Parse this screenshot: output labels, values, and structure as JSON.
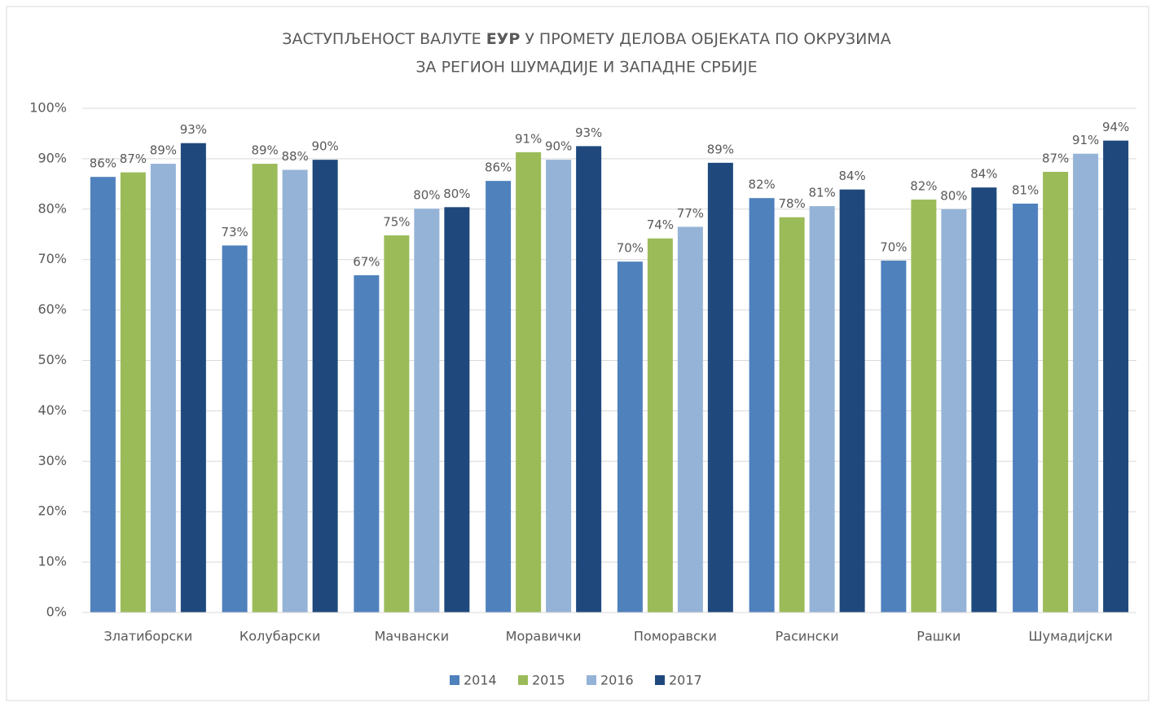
{
  "chart_data": {
    "type": "bar",
    "title": {
      "line1": [
        "ЗАСТУПЉЕНОСТ ВАЛУТЕ",
        "ЕУР",
        "У ПРОМЕТУ ДЕЛОВА ОБЈЕКАТА ПО ОКРУЗИМА"
      ],
      "line2": "ЗА РЕГИОН ШУМАДИЈЕ И ЗАПАДНЕ СРБИЈЕ"
    },
    "categories": [
      "Златиборски",
      "Колубарски",
      "Мачвански",
      "Моравички",
      "Поморавски",
      "Расински",
      "Рашки",
      "Шумадијски"
    ],
    "series": [
      {
        "name": "2014",
        "color": "#4f81bd",
        "values": [
          86.4,
          72.8,
          66.9,
          85.6,
          69.6,
          82.2,
          69.8,
          81.1
        ],
        "value_labels": [
          "86%",
          "73%",
          "67%",
          "86%",
          "70%",
          "82%",
          "70%",
          "81%"
        ]
      },
      {
        "name": "2015",
        "color": "#9bbb59",
        "values": [
          87.3,
          89.0,
          74.8,
          91.3,
          74.2,
          78.4,
          81.9,
          87.4
        ],
        "value_labels": [
          "87%",
          "89%",
          "75%",
          "91%",
          "74%",
          "78%",
          "82%",
          "87%"
        ]
      },
      {
        "name": "2016",
        "color": "#95b3d7",
        "values": [
          89.0,
          87.8,
          80.1,
          89.8,
          76.5,
          80.6,
          80.0,
          91.0
        ],
        "value_labels": [
          "89%",
          "88%",
          "80%",
          "90%",
          "77%",
          "81%",
          "80%",
          "91%"
        ]
      },
      {
        "name": "2017",
        "color": "#1f497d",
        "values": [
          93.1,
          89.8,
          80.4,
          92.5,
          89.2,
          83.9,
          84.3,
          93.6
        ],
        "value_labels": [
          "93%",
          "90%",
          "80%",
          "93%",
          "89%",
          "84%",
          "84%",
          "94%"
        ]
      }
    ],
    "ylim": [
      0,
      100
    ],
    "yticks": [
      {
        "value": 0,
        "label": "0%"
      },
      {
        "value": 10,
        "label": "10%"
      },
      {
        "value": 20,
        "label": "20%"
      },
      {
        "value": 30,
        "label": "30%"
      },
      {
        "value": 40,
        "label": "40%"
      },
      {
        "value": 50,
        "label": "50%"
      },
      {
        "value": 60,
        "label": "60%"
      },
      {
        "value": 70,
        "label": "70%"
      },
      {
        "value": 80,
        "label": "80%"
      },
      {
        "value": 90,
        "label": "90%"
      },
      {
        "value": 100,
        "label": "100%"
      }
    ],
    "grid": true,
    "legend": "bottom"
  }
}
